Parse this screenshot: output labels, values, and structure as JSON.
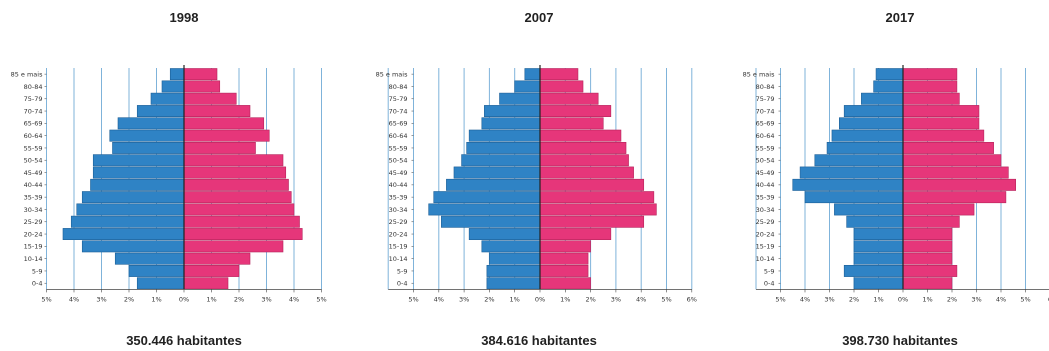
{
  "colors": {
    "male": "#2f83c5",
    "female": "#e6367a",
    "grid": "#7fb3da",
    "axis": "#222222"
  },
  "age_groups": [
    "0-4",
    "5-9",
    "10-14",
    "15-19",
    "20-24",
    "25-29",
    "30-34",
    "35-39",
    "40-44",
    "45-49",
    "50-54",
    "55-59",
    "60-64",
    "65-69",
    "70-74",
    "75-79",
    "80-84",
    "85 e mais"
  ],
  "chart_data": [
    {
      "type": "bar",
      "title": "1998",
      "caption": "350.446 habitantes",
      "categories": [
        "0-4",
        "5-9",
        "10-14",
        "15-19",
        "20-24",
        "25-29",
        "30-34",
        "35-39",
        "40-44",
        "45-49",
        "50-54",
        "55-59",
        "60-64",
        "65-69",
        "70-74",
        "75-79",
        "80-84",
        "85 e mais"
      ],
      "series": [
        {
          "values_left": [
            1.7,
            2.0,
            2.5,
            3.7,
            4.4,
            4.1,
            3.9,
            3.7,
            3.4,
            3.3,
            3.3,
            2.6,
            2.7,
            2.4,
            1.7,
            1.2,
            0.8,
            0.5
          ]
        },
        {
          "values_right": [
            1.6,
            2.0,
            2.4,
            3.6,
            4.3,
            4.2,
            4.0,
            3.9,
            3.8,
            3.7,
            3.6,
            2.6,
            3.1,
            2.9,
            2.4,
            1.9,
            1.3,
            1.2
          ]
        }
      ],
      "xlim": [
        -5,
        5
      ],
      "xticks": [
        "5%",
        "4%",
        "3%",
        "2%",
        "1%",
        "0%",
        "1%",
        "2%",
        "3%",
        "4%",
        "5%"
      ]
    },
    {
      "type": "bar",
      "title": "2007",
      "caption": "384.616 habitantes",
      "categories": [
        "0-4",
        "5-9",
        "10-14",
        "15-19",
        "20-24",
        "25-29",
        "30-34",
        "35-39",
        "40-44",
        "45-49",
        "50-54",
        "55-59",
        "60-64",
        "65-69",
        "70-74",
        "75-79",
        "80-84",
        "85 e mais"
      ],
      "series": [
        {
          "values_left": [
            2.1,
            2.1,
            2.0,
            2.3,
            2.8,
            3.9,
            4.4,
            4.2,
            3.7,
            3.4,
            3.1,
            2.9,
            2.8,
            2.3,
            2.2,
            1.6,
            1.0,
            0.6
          ]
        },
        {
          "values_right": [
            2.0,
            1.9,
            1.9,
            2.0,
            2.8,
            4.1,
            4.6,
            4.5,
            4.1,
            3.7,
            3.5,
            3.4,
            3.2,
            2.5,
            2.8,
            2.3,
            1.7,
            1.5
          ]
        }
      ],
      "xlim": [
        -6,
        6
      ],
      "xticks": [
        "5%",
        "4%",
        "3%",
        "2%",
        "1%",
        "0%",
        "1%",
        "2%",
        "3%",
        "4%",
        "5%",
        "6%"
      ]
    },
    {
      "type": "bar",
      "title": "2017",
      "caption": "398.730 habitantes",
      "categories": [
        "0-4",
        "5-9",
        "10-14",
        "15-19",
        "20-24",
        "25-29",
        "30-34",
        "35-39",
        "40-44",
        "45-49",
        "50-54",
        "55-59",
        "60-64",
        "65-69",
        "70-74",
        "75-79",
        "80-84",
        "85 e mais"
      ],
      "series": [
        {
          "values_left": [
            2.0,
            2.4,
            2.0,
            2.0,
            2.0,
            2.3,
            2.8,
            4.0,
            4.5,
            4.2,
            3.6,
            3.1,
            2.9,
            2.6,
            2.4,
            1.7,
            1.2,
            1.1
          ]
        },
        {
          "values_right": [
            2.0,
            2.2,
            2.0,
            2.0,
            2.0,
            2.3,
            2.9,
            4.2,
            4.6,
            4.3,
            4.0,
            3.7,
            3.3,
            3.1,
            3.1,
            2.3,
            2.2,
            2.2
          ]
        }
      ],
      "xlim": [
        -6,
        6
      ],
      "xticks": [
        "5%",
        "4%",
        "3%",
        "2%",
        "1%",
        "0%",
        "1%",
        "2%",
        "3%",
        "4%",
        "5%",
        "6"
      ]
    }
  ]
}
